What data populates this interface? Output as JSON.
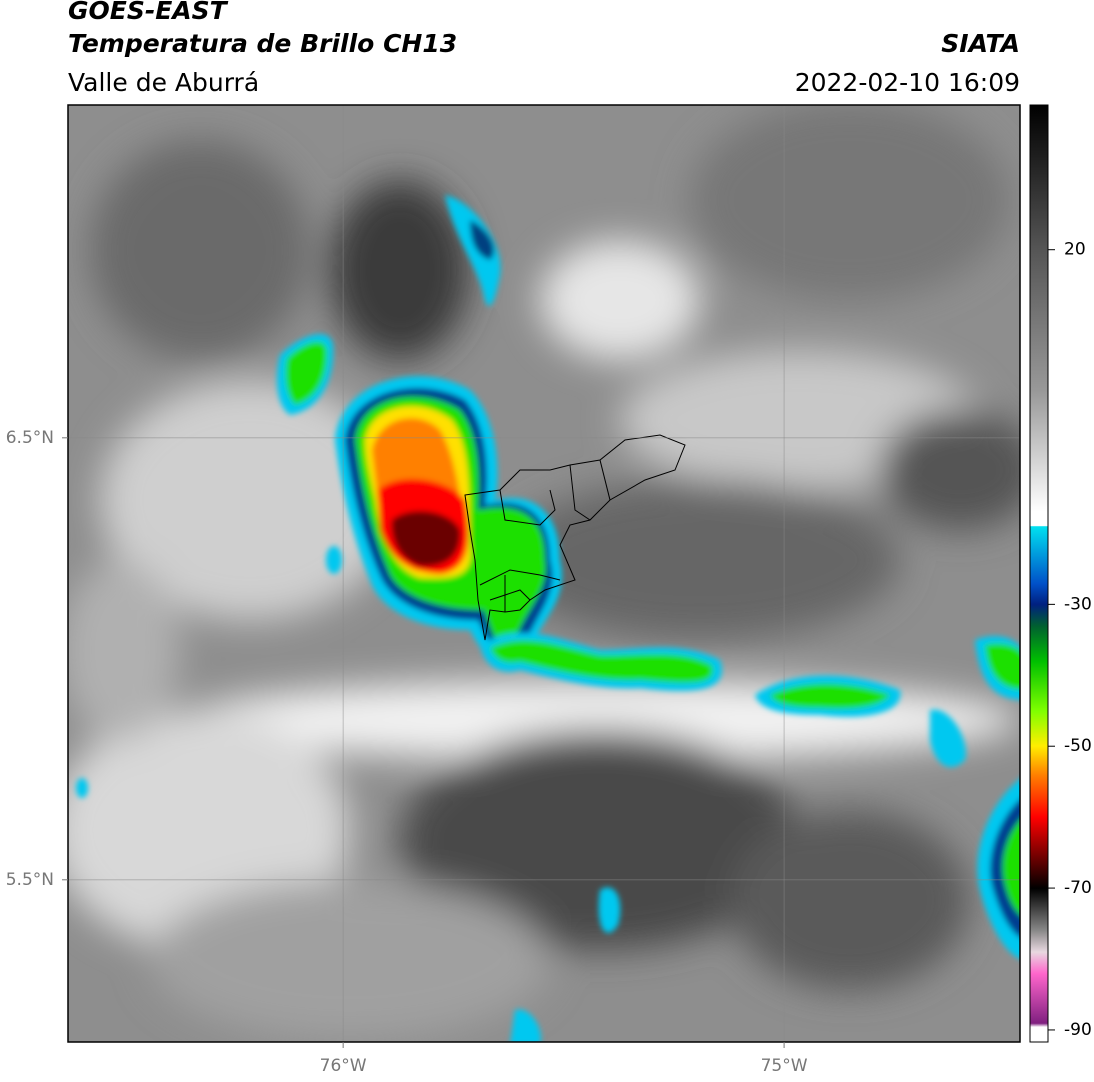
{
  "header": {
    "title": "GOES-EAST",
    "subtitle": "Temperatura de Brillo CH13",
    "region": "Valle de Aburrá",
    "source": "SIATA",
    "datetime": "2022-02-10 16:09"
  },
  "map": {
    "xlim": [
      -76.624,
      -74.465
    ],
    "ylim": [
      5.133,
      7.253
    ],
    "xticks": [
      {
        "value": -76,
        "label": "76°W"
      },
      {
        "value": -75,
        "label": "75°W"
      }
    ],
    "yticks": [
      {
        "value": 6.5,
        "label": "6.5°N"
      },
      {
        "value": 5.5,
        "label": "5.5°N"
      }
    ],
    "grid": true
  },
  "colorbar": {
    "lim": [
      -91.7,
      40.4
    ],
    "ticks": [
      20,
      -30,
      -50,
      -70,
      -90
    ]
  }
}
